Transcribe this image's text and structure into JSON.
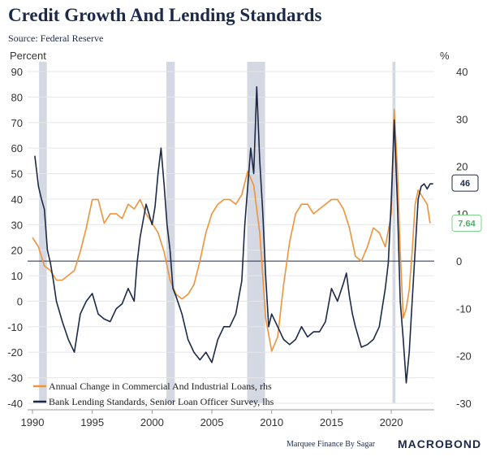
{
  "header": {
    "title": "Credit Growth And Lending Standards",
    "subtitle": "Source: Federal Reserve"
  },
  "footer": {
    "credit": "Marquee Finance By Sagar",
    "logo": "MACROBOND"
  },
  "chart_data": {
    "type": "line",
    "title": "Credit Growth And Lending Standards",
    "ylabel_left": "Percent",
    "ylabel_right": "%",
    "ylim_left": [
      -40,
      90
    ],
    "ylim_right": [
      -30,
      40
    ],
    "yticks_left": [
      -40,
      -30,
      -20,
      -10,
      0,
      10,
      20,
      30,
      40,
      50,
      60,
      70,
      80,
      90
    ],
    "yticks_right": [
      -30,
      -20,
      -10,
      0,
      10,
      20,
      30,
      40
    ],
    "xlim": [
      1990,
      2024
    ],
    "xticks": [
      1990,
      1995,
      2000,
      2005,
      2010,
      2015,
      2020
    ],
    "zero_line_right": 0,
    "grid": true,
    "legend_position": "bottom-left",
    "recessions": [
      [
        1990.55,
        1991.2
      ],
      [
        2001.2,
        2001.9
      ],
      [
        2007.95,
        2009.45
      ],
      [
        2020.1,
        2020.35
      ]
    ],
    "series": [
      {
        "name": "Annual Change in Commercial And Industrial Loans, rhs",
        "axis": "right",
        "color": "#f0923a",
        "end_label": "7.64",
        "x": [
          1990.0,
          1990.5,
          1991.0,
          1991.5,
          1992.0,
          1992.5,
          1993.0,
          1993.5,
          1994.0,
          1994.5,
          1995.0,
          1995.5,
          1996.0,
          1996.5,
          1997.0,
          1997.5,
          1998.0,
          1998.5,
          1999.0,
          1999.5,
          2000.0,
          2000.5,
          2001.0,
          2001.5,
          2002.0,
          2002.5,
          2003.0,
          2003.5,
          2004.0,
          2004.5,
          2005.0,
          2005.5,
          2006.0,
          2006.5,
          2007.0,
          2007.5,
          2008.0,
          2008.5,
          2009.0,
          2009.5,
          2010.0,
          2010.5,
          2011.0,
          2011.5,
          2012.0,
          2012.5,
          2013.0,
          2013.5,
          2014.0,
          2014.5,
          2015.0,
          2015.5,
          2016.0,
          2016.5,
          2017.0,
          2017.5,
          2018.0,
          2018.5,
          2019.0,
          2019.5,
          2020.0,
          2020.25,
          2020.5,
          2020.75,
          2021.0,
          2021.25,
          2021.5,
          2021.75,
          2022.0,
          2022.25,
          2022.5,
          2022.75,
          2023.0,
          2023.25
        ],
        "values": [
          5,
          3,
          -1,
          -2,
          -4,
          -4,
          -3,
          -2,
          2,
          7,
          13,
          13,
          8,
          10,
          10,
          9,
          12,
          11,
          13,
          10,
          8,
          6,
          2,
          -4,
          -7,
          -8,
          -7,
          -5,
          0,
          6,
          10,
          12,
          13,
          13,
          12,
          14,
          19,
          16,
          6,
          -12,
          -19,
          -16,
          -5,
          4,
          10,
          12,
          12,
          10,
          11,
          12,
          13,
          13,
          11,
          7,
          1,
          0,
          3,
          7,
          6,
          3,
          10,
          32,
          20,
          2,
          -12,
          -10,
          -6,
          2,
          12,
          15,
          14,
          13,
          12,
          8
        ]
      },
      {
        "name": "Bank Lending Standards, Senior Loan Officer Survey, lhs",
        "axis": "left",
        "color": "#1c2a48",
        "end_label": "46",
        "x": [
          1990.2,
          1990.5,
          1990.75,
          1991.0,
          1991.25,
          1991.5,
          1991.75,
          1992.0,
          1992.5,
          1993.0,
          1993.5,
          1994.0,
          1994.5,
          1995.0,
          1995.5,
          1996.0,
          1996.5,
          1997.0,
          1997.5,
          1998.0,
          1998.5,
          1998.75,
          1999.0,
          1999.5,
          2000.0,
          2000.25,
          2000.5,
          2000.75,
          2001.0,
          2001.25,
          2001.5,
          2001.75,
          2002.0,
          2002.5,
          2003.0,
          2003.5,
          2004.0,
          2004.5,
          2005.0,
          2005.5,
          2006.0,
          2006.5,
          2007.0,
          2007.5,
          2007.75,
          2008.0,
          2008.25,
          2008.5,
          2008.75,
          2009.0,
          2009.25,
          2009.5,
          2009.75,
          2010.0,
          2010.5,
          2011.0,
          2011.5,
          2012.0,
          2012.5,
          2013.0,
          2013.5,
          2014.0,
          2014.5,
          2015.0,
          2015.5,
          2016.0,
          2016.25,
          2016.5,
          2016.75,
          2017.0,
          2017.5,
          2018.0,
          2018.5,
          2019.0,
          2019.5,
          2019.75,
          2020.0,
          2020.25,
          2020.5,
          2020.75,
          2021.0,
          2021.25,
          2021.5,
          2021.75,
          2022.0,
          2022.25,
          2022.5,
          2022.75,
          2023.0,
          2023.25,
          2023.5
        ],
        "values": [
          57,
          45,
          40,
          36,
          20,
          15,
          8,
          0,
          -8,
          -15,
          -20,
          -5,
          0,
          3,
          -5,
          -7,
          -8,
          -3,
          -1,
          5,
          0,
          15,
          25,
          38,
          30,
          37,
          50,
          60,
          46,
          30,
          20,
          5,
          2,
          -5,
          -15,
          -20,
          -23,
          -20,
          -24,
          -15,
          -10,
          -10,
          -5,
          8,
          30,
          45,
          60,
          50,
          84,
          55,
          35,
          10,
          -10,
          -5,
          -10,
          -15,
          -17,
          -15,
          -10,
          -14,
          -12,
          -12,
          -8,
          5,
          0,
          7,
          11,
          2,
          -5,
          -10,
          -18,
          -17,
          -15,
          -10,
          5,
          15,
          40,
          71,
          40,
          0,
          -15,
          -32,
          -20,
          0,
          20,
          40,
          45,
          46,
          44,
          46,
          46
        ]
      }
    ]
  }
}
